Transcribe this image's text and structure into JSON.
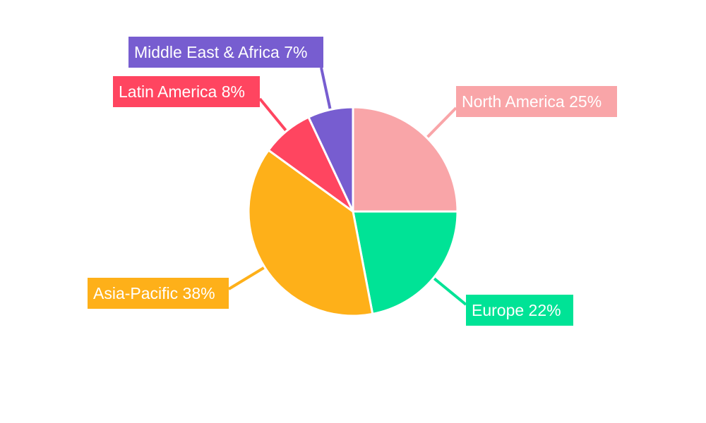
{
  "chart_data": {
    "type": "pie",
    "title": "",
    "start_angle": "top, clockwise",
    "slices": [
      {
        "label": "North America",
        "value": 25,
        "display": "North America 25%",
        "color": "#f9a5a8"
      },
      {
        "label": "Europe",
        "value": 22,
        "display": "Europe 22%",
        "color": "#00e396"
      },
      {
        "label": "Asia-Pacific",
        "value": 38,
        "display": "Asia-Pacific 38%",
        "color": "#feb019"
      },
      {
        "label": "Latin America",
        "value": 8,
        "display": "Latin America 8%",
        "color": "#ff4560"
      },
      {
        "label": "Middle East & Africa",
        "value": 7,
        "display": "Middle East & Africa 7%",
        "color": "#775dd0"
      }
    ],
    "legend": "none; external data labels with leader lines"
  }
}
